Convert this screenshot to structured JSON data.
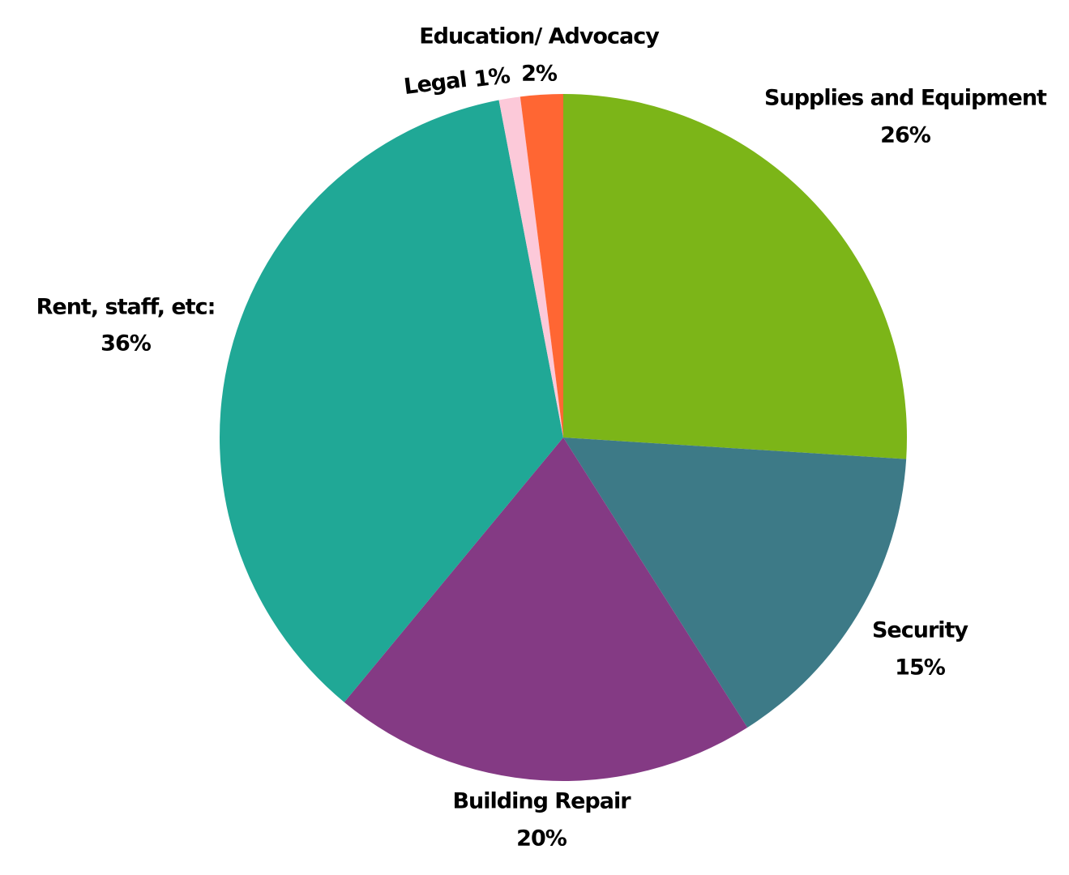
{
  "chart_data": {
    "type": "pie",
    "categories": [
      "Supplies and Equipment",
      "Security",
      "Building Repair",
      "Rent, staff, etc:",
      "Legal",
      "Education/ Advocacy"
    ],
    "values": [
      26,
      15,
      20,
      36,
      1,
      2
    ],
    "value_labels": [
      "26%",
      "15%",
      "20%",
      "36%",
      "1%",
      "2%"
    ],
    "colors": [
      "#7cb518",
      "#3d7a87",
      "#843a84",
      "#20a896",
      "#fcc9d9",
      "#ff6633"
    ]
  }
}
